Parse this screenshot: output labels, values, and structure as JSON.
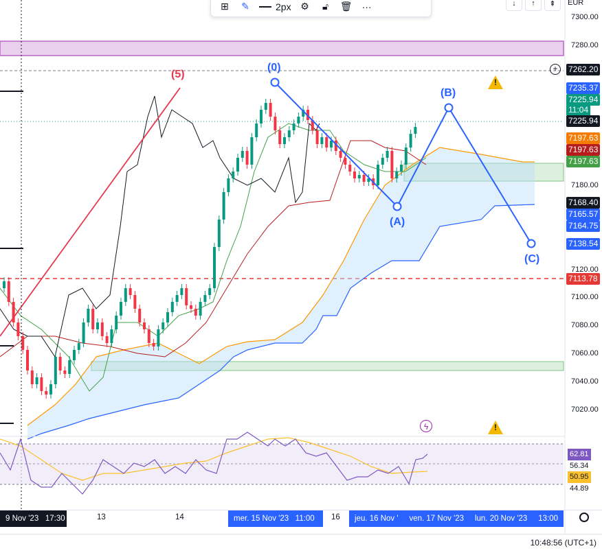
{
  "toolbar": {
    "line_width_label": "2px",
    "items": [
      "add-alert",
      "pencil",
      "line-width",
      "settings",
      "lock",
      "delete",
      "more"
    ],
    "more_label": "···"
  },
  "currency": "EUR",
  "price_axis": {
    "ticks": [
      "7300.00",
      "7280.00",
      "7180.00",
      "7120.00",
      "7100.00",
      "7080.00",
      "7060.00",
      "7040.00",
      "7020.00"
    ],
    "labels": [
      {
        "name": "hline-level",
        "text": "7262.20",
        "bg": "#131722",
        "fg": "#ffffff"
      },
      {
        "name": "partial-level",
        "text": "7235.37",
        "bg": "#2962ff",
        "fg": "#ffffff"
      },
      {
        "name": "last-price",
        "text": "7225.94",
        "bg": "#089981",
        "fg": "#ffffff"
      },
      {
        "name": "countdown",
        "text": "11:04",
        "bg": "#089981",
        "fg": "#ffffff"
      },
      {
        "name": "crosshair-price",
        "text": "7225.94",
        "bg": "#131722",
        "fg": "#ffffff"
      },
      {
        "name": "orange-line",
        "text": "7197.63",
        "bg": "#f57c00",
        "fg": "#ffffff"
      },
      {
        "name": "red-line",
        "text": "7197.63",
        "bg": "#b71c1c",
        "fg": "#ffffff"
      },
      {
        "name": "green-line",
        "text": "7197.63",
        "bg": "#43a047",
        "fg": "#ffffff"
      },
      {
        "name": "dark-level",
        "text": "7168.40",
        "bg": "#131722",
        "fg": "#ffffff"
      },
      {
        "name": "blue-level-1",
        "text": "7165.57",
        "bg": "#2962ff",
        "fg": "#ffffff"
      },
      {
        "name": "blue-level-2",
        "text": "7164.75",
        "bg": "#2962ff",
        "fg": "#ffffff"
      },
      {
        "name": "wave-c-level",
        "text": "7138.54",
        "bg": "#2962ff",
        "fg": "#ffffff"
      },
      {
        "name": "dashed-red-level",
        "text": "7113.78",
        "bg": "#e53935",
        "fg": "#ffffff"
      }
    ]
  },
  "rsi_axis": {
    "labels": [
      {
        "text": "62.81",
        "bg": "#7e57c2",
        "fg": "#ffffff"
      },
      {
        "text": "56.34",
        "bg": "transparent",
        "fg": "#131722"
      },
      {
        "text": "50.95",
        "bg": "#fbc02d",
        "fg": "#131722"
      },
      {
        "text": "44.89",
        "bg": "transparent",
        "fg": "#131722"
      }
    ]
  },
  "time_axis": {
    "labels": [
      "13",
      "14",
      "16"
    ],
    "highlight_left": [
      "9 Nov '23",
      "17:30"
    ],
    "highlight_mid": [
      "mer. 15 Nov '23",
      "11:00"
    ],
    "highlight_right": [
      "jeu. 16 Nov '",
      "ven. 17 Nov '23",
      "lun. 20 Nov '23",
      "13:00"
    ]
  },
  "wave_labels": {
    "w5": "(5)",
    "w0": "(0)",
    "wA": "(A)",
    "wB": "(B)",
    "wC": "(C)"
  },
  "status": {
    "clock": "10:48:56 (UTC+1)"
  },
  "colors": {
    "wave_blue": "#2962ff",
    "wave_red": "#e53950",
    "bull": "#089981",
    "bear": "#f23645",
    "purple_zone": "#9c27b0",
    "green_zone": "#4caf50",
    "warning": "#f5b800"
  }
}
